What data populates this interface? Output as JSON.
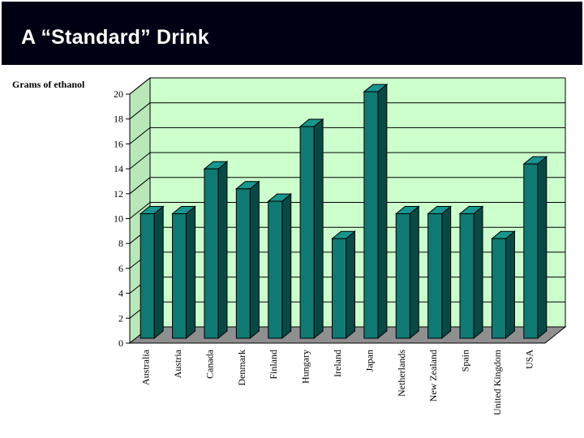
{
  "slide": {
    "title": "A “Standard” Drink"
  },
  "colors": {
    "title_bar": "#000014",
    "plot_background": "#ccffcc",
    "floor": "#8f8f8f",
    "bar_front": "#0e7a73",
    "bar_side": "#064a45",
    "bar_top": "#16968e",
    "gridline": "#000000"
  },
  "chart_data": {
    "type": "bar",
    "ylabel": "Grams of ethanol",
    "xlabel": "",
    "ylim": [
      0,
      20
    ],
    "yticks": [
      0,
      2,
      4,
      6,
      8,
      10,
      12,
      14,
      16,
      18,
      20
    ],
    "grid": true,
    "three_d": true,
    "categories": [
      "Australia",
      "Austria",
      "Canada",
      "Denmark",
      "Finland",
      "Hungary",
      "Ireland",
      "Japan",
      "Netherlands",
      "New Zealand",
      "Spain",
      "United Kingdom",
      "USA"
    ],
    "values": [
      10,
      10,
      13.6,
      12,
      11,
      17,
      8,
      19.8,
      10,
      10,
      10,
      8,
      14
    ]
  }
}
